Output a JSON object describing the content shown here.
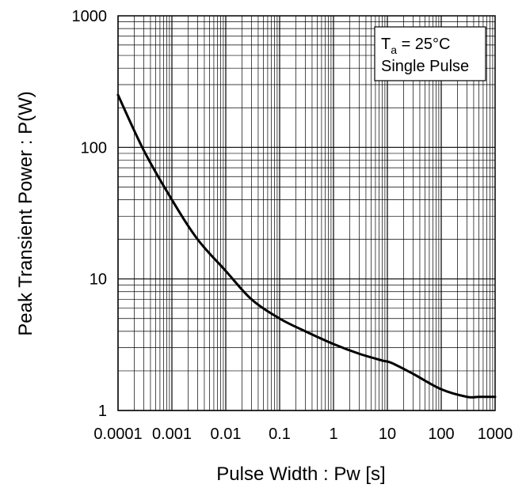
{
  "chart_data": {
    "type": "line",
    "xlabel": "Pulse Width : Pw [s]",
    "ylabel": "Peak Transient Power : P(W)",
    "xscale": "log",
    "yscale": "log",
    "xlim": [
      0.0001,
      1000
    ],
    "ylim": [
      1,
      1000
    ],
    "grid": true,
    "x_ticks": [
      {
        "value": 0.0001,
        "label": "0.0001"
      },
      {
        "value": 0.001,
        "label": "0.001"
      },
      {
        "value": 0.01,
        "label": "0.01"
      },
      {
        "value": 0.1,
        "label": "0.1"
      },
      {
        "value": 1,
        "label": "1"
      },
      {
        "value": 10,
        "label": "10"
      },
      {
        "value": 100,
        "label": "100"
      },
      {
        "value": 1000,
        "label": "1000"
      }
    ],
    "y_ticks": [
      {
        "value": 1,
        "label": "1"
      },
      {
        "value": 10,
        "label": "10"
      },
      {
        "value": 100,
        "label": "100"
      },
      {
        "value": 1000,
        "label": "1000"
      }
    ],
    "legend": {
      "placement": "top-right",
      "line1_main": "T",
      "line1_sub": "a",
      "line1_rest": " = 25°C",
      "line2": "Single Pulse"
    },
    "series": [
      {
        "color": "#000000",
        "x": [
          0.0001,
          0.0003,
          0.001,
          0.003,
          0.01,
          0.03,
          0.1,
          0.3,
          1,
          3,
          8,
          12,
          30,
          100,
          300,
          500,
          1000
        ],
        "y": [
          250,
          95,
          40,
          20,
          11.5,
          7,
          5,
          4,
          3.2,
          2.7,
          2.4,
          2.3,
          1.9,
          1.45,
          1.27,
          1.27,
          1.27
        ]
      }
    ]
  }
}
